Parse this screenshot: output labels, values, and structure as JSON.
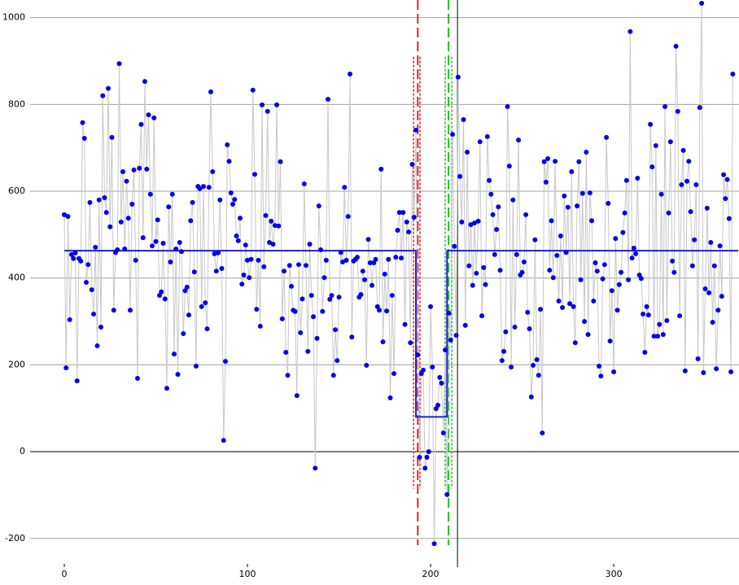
{
  "chart_data": {
    "type": "scatter",
    "xlim": [
      -35.1,
      368.4
    ],
    "ylim": [
      -266,
      1040.6
    ],
    "xticks": [
      0,
      100,
      200,
      300
    ],
    "yticks": [
      -200,
      0,
      200,
      400,
      600,
      800,
      1000
    ],
    "grid": true,
    "zero_line_color": "#000000",
    "grid_color": "#a0a0a0",
    "line_color": "#c8c8c8",
    "color": "#0000ee",
    "x": [
      0,
      1,
      2,
      3,
      4,
      5,
      6,
      7,
      8,
      9,
      10,
      11,
      12,
      13,
      14,
      15,
      16,
      17,
      18,
      19,
      20,
      21,
      22,
      23,
      24,
      25,
      26,
      27,
      28,
      29,
      30,
      31,
      32,
      33,
      34,
      35,
      36,
      37,
      38,
      39,
      40,
      41,
      42,
      43,
      44,
      45,
      46,
      47,
      48,
      49,
      50,
      51,
      52,
      53,
      54,
      55,
      56,
      57,
      58,
      59,
      60,
      61,
      62,
      63,
      64,
      65,
      66,
      67,
      68,
      69,
      70,
      71,
      72,
      73,
      74,
      75,
      76,
      77,
      78,
      79,
      80,
      81,
      82,
      83,
      84,
      85,
      86,
      87,
      88,
      89,
      90,
      91,
      92,
      93,
      94,
      95,
      96,
      97,
      98,
      99,
      100,
      101,
      102,
      103,
      104,
      105,
      106,
      107,
      108,
      109,
      110,
      111,
      112,
      113,
      114,
      115,
      116,
      117,
      118,
      119,
      120,
      121,
      122,
      123,
      124,
      125,
      126,
      127,
      128,
      129,
      130,
      131,
      132,
      133,
      134,
      135,
      136,
      137,
      138,
      139,
      140,
      141,
      142,
      143,
      144,
      145,
      146,
      147,
      148,
      149,
      150,
      151,
      152,
      153,
      154,
      155,
      156,
      157,
      158,
      159,
      160,
      161,
      162,
      163,
      164,
      165,
      166,
      167,
      168,
      169,
      170,
      171,
      172,
      173,
      174,
      175,
      176,
      177,
      178,
      179,
      180,
      181,
      182,
      183,
      184,
      185,
      186,
      187,
      188,
      189,
      190,
      191,
      192,
      193,
      194,
      195,
      196,
      197,
      198,
      199,
      200,
      201,
      202,
      203,
      204,
      205,
      206,
      207,
      208,
      209,
      210,
      211,
      212,
      213,
      214,
      215,
      216,
      217,
      218,
      219,
      220,
      221,
      222,
      223,
      224,
      225,
      226,
      227,
      228,
      229,
      230,
      231,
      232,
      233,
      234,
      235,
      236,
      237,
      238,
      239,
      240,
      241,
      242,
      243,
      244,
      245,
      246,
      247,
      248,
      249,
      250,
      251,
      252,
      253,
      254,
      255,
      256,
      257,
      258,
      259,
      260,
      261,
      262,
      263,
      264,
      265,
      266,
      267,
      268,
      269,
      270,
      271,
      272,
      273,
      274,
      275,
      276,
      277,
      278,
      279,
      280,
      281,
      282,
      283,
      284,
      285,
      286,
      287,
      288,
      289,
      290,
      291,
      292,
      293,
      294,
      295,
      296,
      297,
      298,
      299,
      300,
      301,
      302,
      303,
      304,
      305,
      306,
      307,
      308,
      309,
      310,
      311,
      312,
      313,
      314,
      315,
      316,
      317,
      318,
      319,
      320,
      321,
      322,
      323,
      324,
      325,
      326,
      327,
      328,
      329,
      330,
      331,
      332,
      333,
      334,
      335,
      336,
      337,
      338,
      339,
      340,
      341,
      342,
      343,
      344,
      345,
      346,
      347,
      348,
      349,
      350,
      351,
      352,
      353,
      354,
      355,
      356,
      357,
      358,
      359,
      360,
      361,
      362,
      363,
      364,
      365
    ],
    "values": [
      546,
      193,
      542,
      304,
      454,
      445,
      458,
      163,
      445,
      439,
      758,
      722,
      390,
      431,
      574,
      373,
      317,
      471,
      244,
      580,
      287,
      820,
      585,
      551,
      837,
      518,
      724,
      326,
      459,
      465,
      894,
      529,
      645,
      467,
      623,
      538,
      326,
      570,
      649,
      441,
      169,
      653,
      754,
      493,
      853,
      651,
      776,
      593,
      474,
      769,
      484,
      534,
      360,
      368,
      480,
      352,
      146,
      564,
      437,
      593,
      225,
      467,
      178,
      482,
      461,
      272,
      371,
      379,
      315,
      532,
      574,
      414,
      197,
      611,
      606,
      334,
      611,
      343,
      283,
      609,
      829,
      645,
      456,
      416,
      458,
      580,
      422,
      26,
      208,
      707,
      669,
      596,
      570,
      581,
      497,
      486,
      538,
      386,
      407,
      476,
      441,
      401,
      443,
      833,
      639,
      328,
      441,
      289,
      799,
      426,
      544,
      784,
      482,
      531,
      478,
      521,
      799,
      520,
      668,
      306,
      416,
      229,
      176,
      429,
      381,
      326,
      323,
      129,
      431,
      274,
      352,
      617,
      429,
      231,
      478,
      360,
      311,
      -38,
      261,
      566,
      465,
      323,
      401,
      441,
      812,
      351,
      360,
      176,
      281,
      210,
      356,
      459,
      437,
      609,
      441,
      542,
      870,
      264,
      439,
      443,
      448,
      356,
      362,
      416,
      396,
      199,
      489,
      435,
      383,
      435,
      443,
      334,
      326,
      651,
      253,
      409,
      324,
      443,
      124,
      360,
      180,
      448,
      510,
      551,
      446,
      551,
      293,
      529,
      506,
      251,
      662,
      540,
      741,
      223,
      -13,
      180,
      188,
      -38,
      -13,
      0,
      334,
      195,
      -212,
      99,
      107,
      171,
      158,
      43,
      234,
      -99,
      319,
      257,
      731,
      473,
      268,
      863,
      634,
      529,
      765,
      291,
      690,
      428,
      523,
      383,
      527,
      411,
      531,
      714,
      313,
      424,
      385,
      726,
      625,
      593,
      546,
      454,
      512,
      564,
      418,
      210,
      231,
      276,
      795,
      658,
      195,
      580,
      287,
      454,
      718,
      407,
      413,
      437,
      546,
      321,
      283,
      126,
      199,
      488,
      212,
      176,
      328,
      43,
      668,
      621,
      675,
      418,
      532,
      401,
      669,
      452,
      347,
      497,
      332,
      589,
      459,
      563,
      341,
      645,
      334,
      251,
      566,
      668,
      396,
      595,
      300,
      690,
      270,
      596,
      532,
      347,
      435,
      416,
      197,
      174,
      398,
      431,
      724,
      572,
      255,
      371,
      184,
      491,
      326,
      385,
      413,
      505,
      550,
      625,
      396,
      968,
      446,
      469,
      456,
      630,
      407,
      399,
      317,
      229,
      334,
      315,
      754,
      656,
      266,
      705,
      266,
      293,
      593,
      270,
      795,
      302,
      550,
      714,
      439,
      413,
      934,
      784,
      313,
      615,
      694,
      186,
      623,
      669,
      553,
      428,
      488,
      615,
      214,
      793,
      1033,
      182,
      375,
      561,
      366,
      482,
      298,
      428,
      191,
      326,
      474,
      358,
      638,
      583,
      627,
      537,
      184,
      870
    ],
    "fit": {
      "x": [
        0,
        192,
        192,
        209,
        209,
        368
      ],
      "values": [
        463,
        463,
        80,
        80,
        463,
        463
      ],
      "color": "#2020d0"
    },
    "change_points": [
      {
        "value": 193,
        "lower": 190.7,
        "upper": 194.2,
        "color": "#e82020"
      },
      {
        "value": 209.8,
        "lower": 208,
        "upper": 211.6,
        "color": "#20c020"
      }
    ],
    "interval_ylim": [
      -85,
      910
    ],
    "cursor_x": 214.7,
    "cursor_color": "#000000"
  }
}
